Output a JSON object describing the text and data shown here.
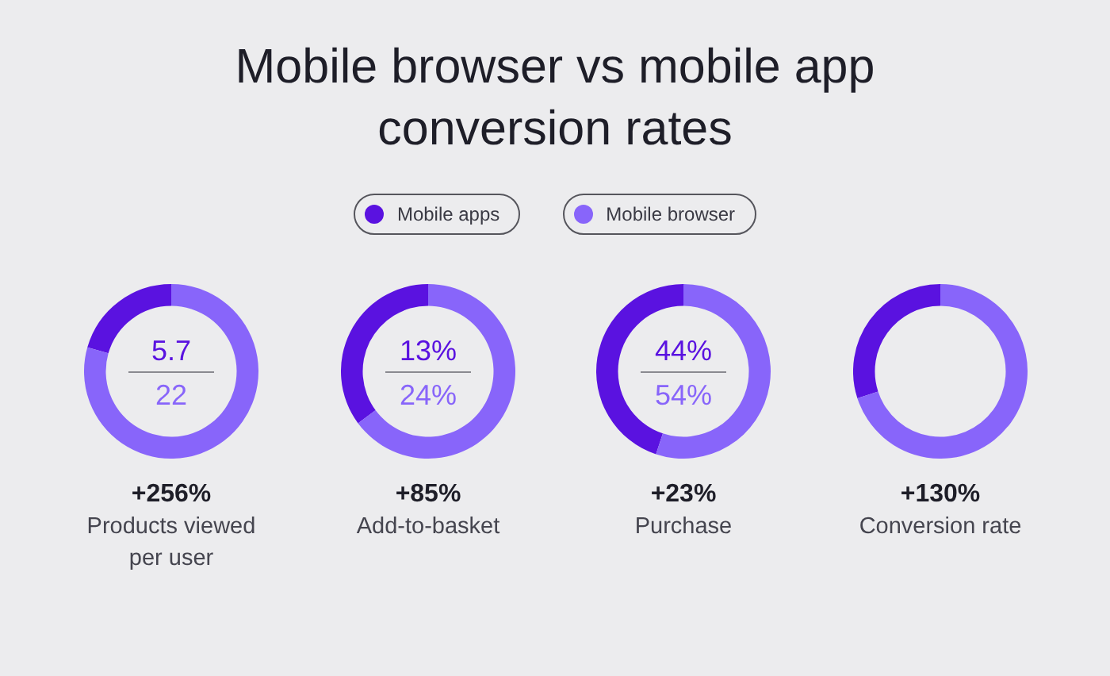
{
  "chart_data": [
    {
      "type": "donut",
      "title": "Mobile browser vs mobile app conversion rates",
      "legend": "top",
      "categories": [
        "Mobile apps",
        "Mobile browser"
      ],
      "values": [
        5.7,
        22
      ],
      "colors": [
        "#5a12e0",
        "#8865fa"
      ],
      "value_labels": [
        "5.7",
        "22"
      ],
      "annotations": [
        "+256%",
        "Products viewed per user"
      ]
    },
    {
      "type": "donut",
      "categories": [
        null,
        null
      ],
      "values": [
        13,
        24
      ],
      "colors": [
        "#5a12e0",
        "#8865fa"
      ],
      "value_labels": [
        "13%",
        "24%"
      ],
      "annotations": [
        "+85%",
        "Add-to-basket"
      ]
    },
    {
      "type": "donut",
      "categories": [
        null,
        null
      ],
      "values": [
        44,
        54
      ],
      "colors": [
        "#5a12e0",
        "#8865fa"
      ],
      "value_labels": [
        "44%",
        "54%"
      ],
      "annotations": [
        "+23%",
        "Purchase"
      ]
    },
    {
      "type": "donut",
      "categories": [
        null,
        null
      ],
      "values": [
        30,
        70
      ],
      "colors": [
        "#5a12e0",
        "#8865fa"
      ],
      "annotations": [
        "+130%",
        "Conversion rate"
      ]
    }
  ]
}
